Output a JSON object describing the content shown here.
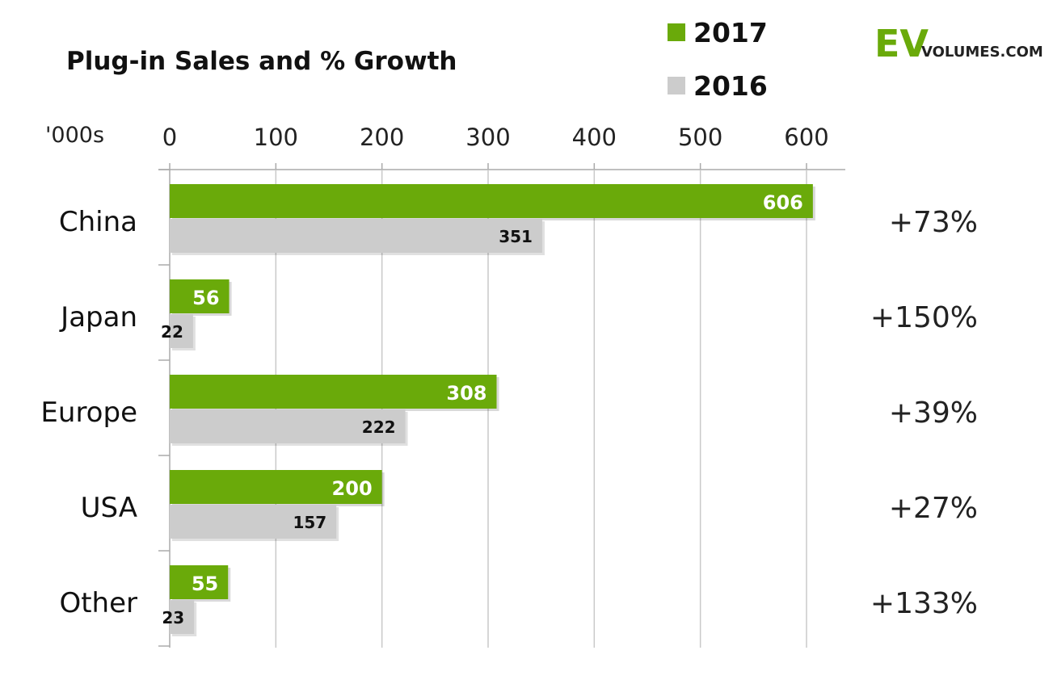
{
  "logo": {
    "ev": "EV",
    "volumes": "VOLUMES.COM",
    "color": "#6aaa0a"
  },
  "chart_data": {
    "type": "bar",
    "orientation": "horizontal",
    "title": "Plug-in Sales and % Growth",
    "unit_label": "'000s",
    "xlim": [
      0,
      600
    ],
    "ticks": [
      0,
      100,
      200,
      300,
      400,
      500,
      600
    ],
    "tick_labels": [
      "0",
      "100",
      "200",
      "300",
      "400",
      "500",
      "600"
    ],
    "grid": true,
    "legend_position": "top-right",
    "categories": [
      "China",
      "Japan",
      "Europe",
      "USA",
      "Other"
    ],
    "series": [
      {
        "name": "2017",
        "color": "#6aaa0a",
        "values": [
          606,
          56,
          308,
          200,
          55
        ],
        "labels": [
          "606",
          "56",
          "308",
          "200",
          "55"
        ]
      },
      {
        "name": "2016",
        "color": "#cccccc",
        "values": [
          351,
          22,
          222,
          157,
          23
        ],
        "labels": [
          "351",
          "22",
          "222",
          "157",
          "23"
        ]
      }
    ],
    "growth": [
      "+73%",
      "+150%",
      "+39%",
      "+27%",
      "+133%"
    ]
  }
}
